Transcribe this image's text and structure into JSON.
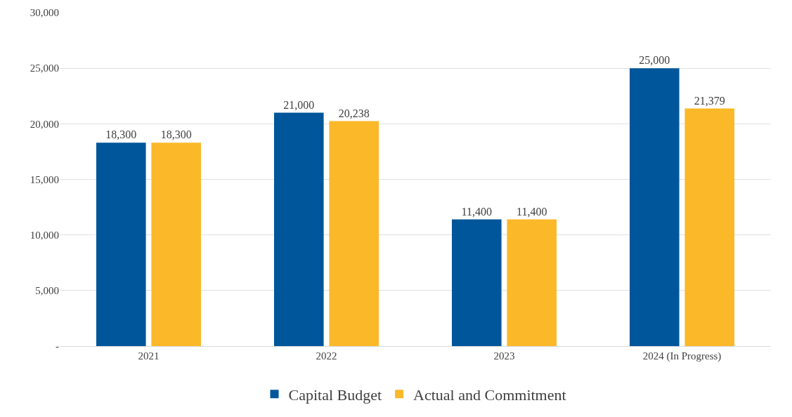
{
  "chart_data": {
    "type": "bar",
    "categories": [
      "2021",
      "2022",
      "2023",
      "2024 (In Progress)"
    ],
    "series": [
      {
        "name": "Capital Budget",
        "color": "#00569a",
        "values": [
          18300,
          21000,
          11400,
          25000
        ],
        "value_labels": [
          "18,300",
          "21,000",
          "11,400",
          "25,000"
        ]
      },
      {
        "name": "Actual and Commitment",
        "color": "#fbb829",
        "values": [
          18300,
          20238,
          11400,
          21379
        ],
        "value_labels": [
          "18,300",
          "20,238",
          "11,400",
          "21,379"
        ]
      }
    ],
    "ylim": [
      0,
      30000
    ],
    "yticks": [
      {
        "value": 0,
        "label": "-"
      },
      {
        "value": 5000,
        "label": "5,000"
      },
      {
        "value": 10000,
        "label": "10,000"
      },
      {
        "value": 15000,
        "label": "15,000"
      },
      {
        "value": 20000,
        "label": "20,000"
      },
      {
        "value": 25000,
        "label": "25,000"
      },
      {
        "value": 30000,
        "label": "30,000"
      }
    ],
    "grid": "y",
    "legend": "bottom"
  }
}
